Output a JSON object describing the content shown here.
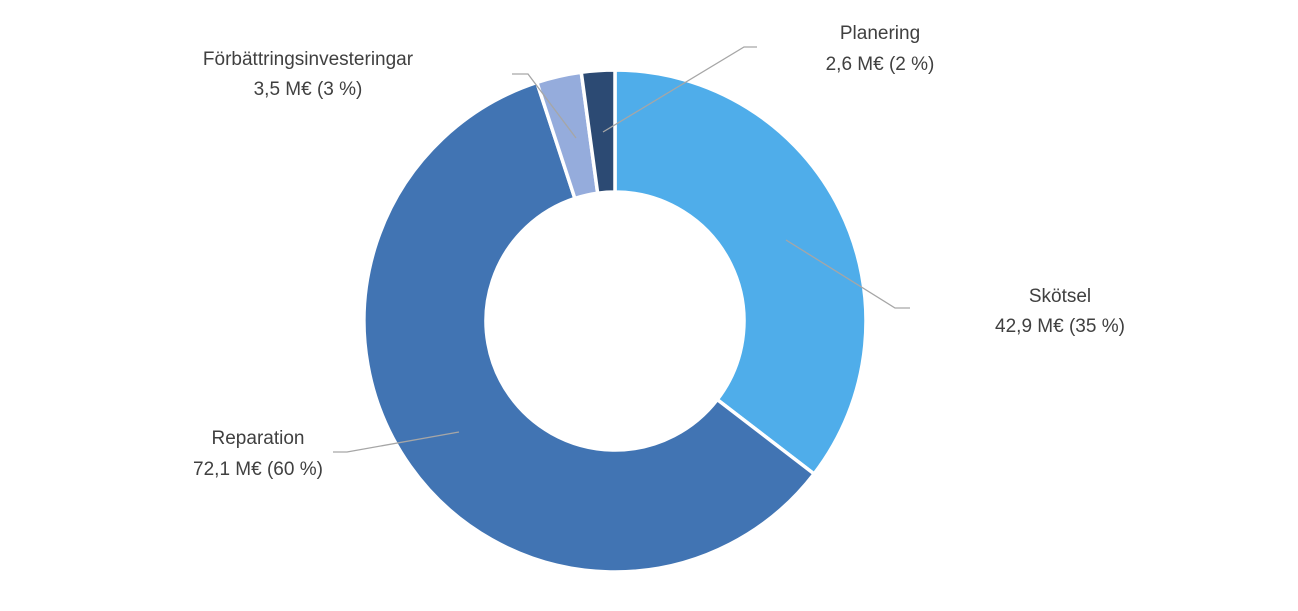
{
  "chart_data": {
    "type": "donut",
    "title": "",
    "slices": [
      {
        "name": "Skötsel",
        "value": 42.9,
        "value_label": "42,9 M€ (35 %)",
        "color": "#4FADEA"
      },
      {
        "name": "Reparation",
        "value": 72.1,
        "value_label": "72,1 M€ (60 %)",
        "color": "#4174B3"
      },
      {
        "name": "Förbättringsinvesteringar",
        "value": 3.5,
        "value_label": "3,5 M€ (3 %)",
        "color": "#95ACDC"
      },
      {
        "name": "Planering",
        "value": 2.6,
        "value_label": "2,6 M€ (2 %)",
        "color": "#2C4A73"
      }
    ],
    "legend": "none",
    "data_labels": "outside-with-leader-lines"
  }
}
